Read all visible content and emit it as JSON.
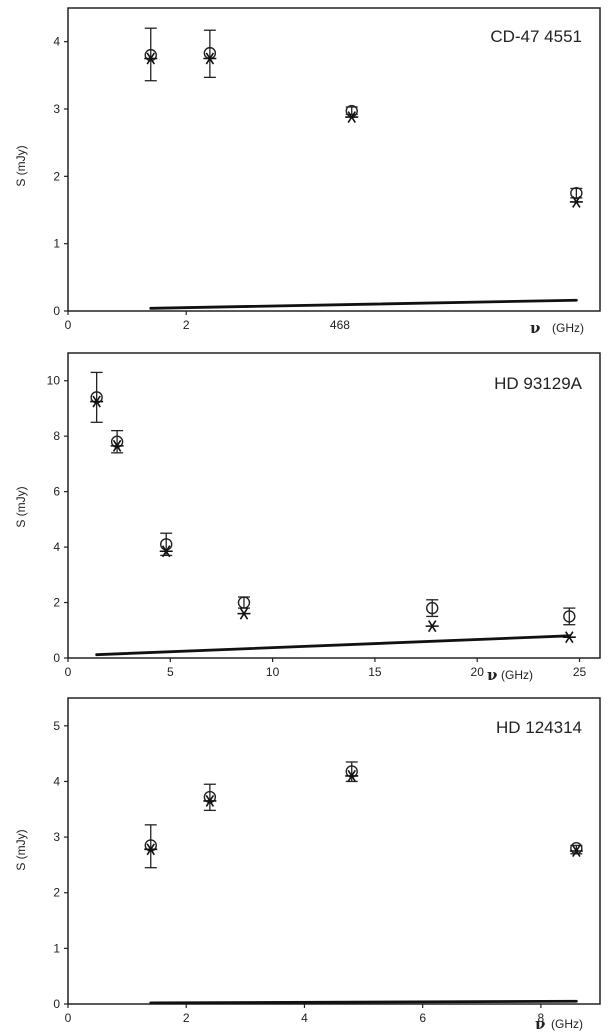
{
  "chart_data": [
    {
      "type": "scatter",
      "title": "CD-47 4551",
      "xlabel_symbol": "ν",
      "xlabel_unit": "(GHz)",
      "ylabel": "S (mJy)",
      "xlim": [
        0,
        9
      ],
      "ylim": [
        0,
        4.5
      ],
      "x_ticks": [
        0,
        2
      ],
      "x_tick_label_group": "468",
      "y_ticks": [
        0,
        1,
        2,
        3,
        4
      ],
      "series": [
        {
          "marker": "circle",
          "x": [
            1.4,
            2.4,
            4.8,
            8.6
          ],
          "y": [
            3.8,
            3.83,
            2.97,
            1.75
          ]
        },
        {
          "marker": "asterisk",
          "x": [
            1.4,
            2.4,
            4.8,
            8.6
          ],
          "y": [
            3.75,
            3.75,
            2.88,
            1.62
          ]
        }
      ],
      "errorbars": [
        [
          3.42,
          4.2
        ],
        [
          3.47,
          4.17
        ],
        [
          2.92,
          3.03
        ],
        [
          1.68,
          1.82
        ]
      ],
      "model_line": {
        "x": [
          1.4,
          8.6
        ],
        "y": [
          0.04,
          0.16
        ]
      }
    },
    {
      "type": "scatter",
      "title": "HD 93129A",
      "xlabel_symbol": "ν",
      "xlabel_unit": "(GHz)",
      "ylabel": "S (mJy)",
      "xlim": [
        0,
        26
      ],
      "ylim": [
        0,
        11
      ],
      "x_ticks": [
        0,
        5,
        10,
        15,
        20,
        25
      ],
      "y_ticks": [
        0,
        2,
        4,
        6,
        8,
        10
      ],
      "series": [
        {
          "marker": "circle",
          "x": [
            1.4,
            2.4,
            4.8,
            8.6,
            17.8,
            24.5
          ],
          "y": [
            9.4,
            7.8,
            4.1,
            2.0,
            1.8,
            1.5
          ]
        },
        {
          "marker": "asterisk",
          "x": [
            1.4,
            2.4,
            4.8,
            8.6,
            17.8,
            24.5
          ],
          "y": [
            9.25,
            7.65,
            3.85,
            1.6,
            1.15,
            0.75
          ]
        }
      ],
      "errorbars": [
        [
          8.5,
          10.3
        ],
        [
          7.4,
          8.2
        ],
        [
          3.7,
          4.5
        ],
        [
          1.8,
          2.2
        ],
        [
          1.5,
          2.1
        ],
        [
          1.2,
          1.8
        ]
      ],
      "model_line": {
        "x": [
          1.4,
          24.5
        ],
        "y": [
          0.12,
          0.8
        ]
      }
    },
    {
      "type": "scatter",
      "title": "HD 124314",
      "xlabel_symbol": "ν",
      "xlabel_unit": "(GHz)",
      "ylabel": "S (mJy)",
      "xlim": [
        0,
        9
      ],
      "ylim": [
        0,
        5.5
      ],
      "x_ticks": [
        0,
        2,
        4,
        6,
        8
      ],
      "y_ticks": [
        0,
        1,
        2,
        3,
        4,
        5
      ],
      "series": [
        {
          "marker": "circle",
          "x": [
            1.4,
            2.4,
            4.8,
            8.6
          ],
          "y": [
            2.85,
            3.72,
            4.18,
            2.8
          ]
        },
        {
          "marker": "asterisk",
          "x": [
            1.4,
            2.4,
            4.8,
            8.6
          ],
          "y": [
            2.78,
            3.65,
            4.1,
            2.75
          ]
        }
      ],
      "errorbars": [
        [
          2.45,
          3.22
        ],
        [
          3.48,
          3.95
        ],
        [
          4.0,
          4.35
        ],
        [
          2.7,
          2.85
        ]
      ],
      "model_line": {
        "x": [
          1.4,
          8.6
        ],
        "y": [
          0.02,
          0.05
        ]
      }
    }
  ]
}
